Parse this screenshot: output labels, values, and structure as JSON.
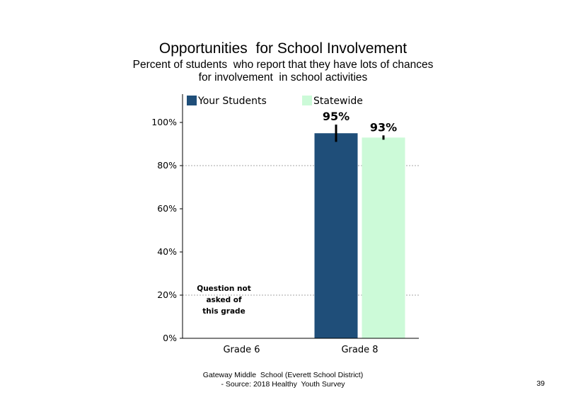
{
  "title": "Opportunities  for School Involvement",
  "subtitle_lines": [
    "Percent of students  who report that they have lots of chances",
    "for involvement  in school activities"
  ],
  "footer_lines": [
    "Gateway Middle  School (Everett School District)",
    "- Source: 2018 Healthy  Youth Survey"
  ],
  "page_number": "39",
  "chart_data": {
    "type": "bar",
    "categories": [
      "Grade 6",
      "Grade 8"
    ],
    "series": [
      {
        "name": "Your Students",
        "color": "#1f4e79",
        "values": [
          null,
          95
        ],
        "data_labels": [
          "",
          "95%"
        ],
        "error": [
          null,
          [
            91,
            99
          ]
        ]
      },
      {
        "name": "Statewide",
        "color": "#ccfad8",
        "values": [
          null,
          93
        ],
        "data_labels": [
          "",
          "93%"
        ],
        "error": [
          null,
          [
            92,
            94
          ]
        ]
      }
    ],
    "ylim": [
      0,
      100
    ],
    "yticks": [
      0,
      20,
      40,
      60,
      80,
      100
    ],
    "ytick_labels": [
      "0%",
      "20%",
      "40%",
      "60%",
      "80%",
      "100%"
    ],
    "gridlines": [
      20,
      80
    ],
    "legend_position": "top",
    "annotations": [
      {
        "category": "Grade 6",
        "lines": [
          "Question not",
          "asked of",
          "this grade"
        ]
      }
    ]
  }
}
